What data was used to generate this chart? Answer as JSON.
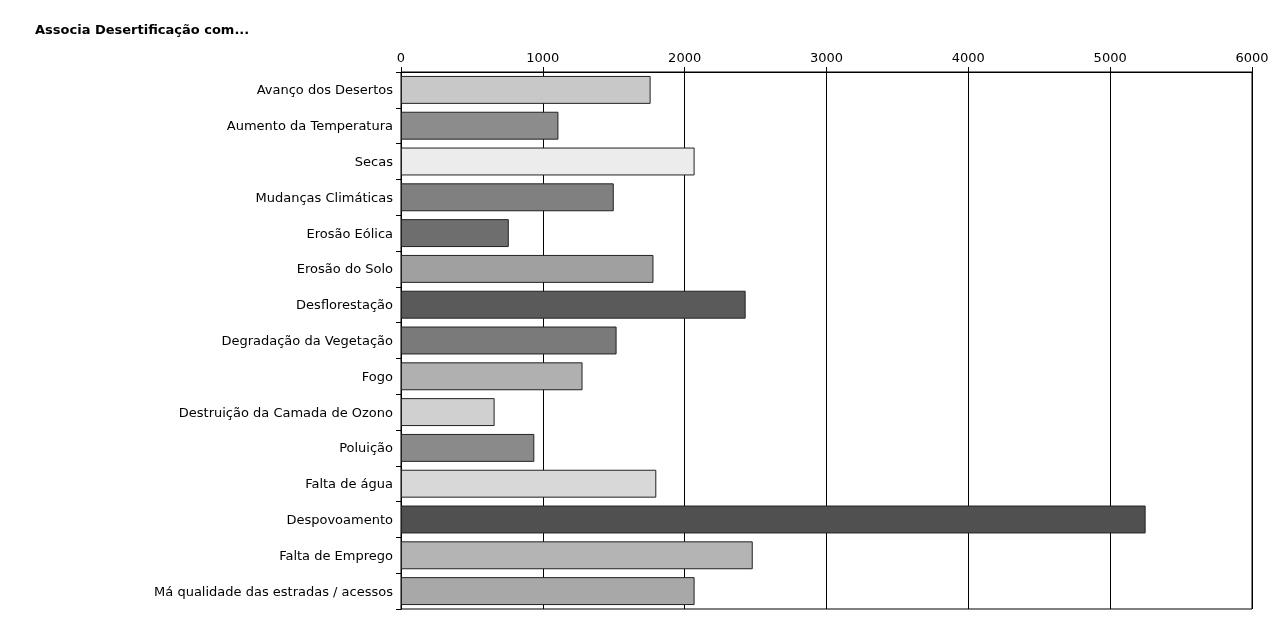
{
  "chart_data": {
    "type": "bar",
    "orientation": "horizontal",
    "title": "Associa Desertificação com...",
    "categories": [
      "Avanço dos Desertos",
      "Aumento da Temperatura",
      "Secas",
      "Mudanças Climáticas",
      "Erosão Eólica",
      "Erosão do Solo",
      "Desflorestação",
      "Degradação da Vegetação",
      "Fogo",
      "Destruição da Camada de Ozono",
      "Poluição",
      "Falta de água",
      "Despovoamento",
      "Falta de Emprego",
      "Má qualidade das estradas / acessos"
    ],
    "values": [
      1760,
      1110,
      2070,
      1500,
      760,
      1780,
      2430,
      1520,
      1280,
      660,
      940,
      1800,
      5250,
      2480,
      2070
    ],
    "colors": [
      "#c8c8c8",
      "#8c8c8c",
      "#ececec",
      "#808080",
      "#6e6e6e",
      "#a0a0a0",
      "#5a5a5a",
      "#7a7a7a",
      "#b0b0b0",
      "#d0d0d0",
      "#8a8a8a",
      "#d8d8d8",
      "#505050",
      "#b4b4b4",
      "#a8a8a8"
    ],
    "xlim": [
      0,
      6000
    ],
    "xticks": [
      0,
      1000,
      2000,
      3000,
      4000,
      5000,
      6000
    ],
    "grid": "x"
  }
}
